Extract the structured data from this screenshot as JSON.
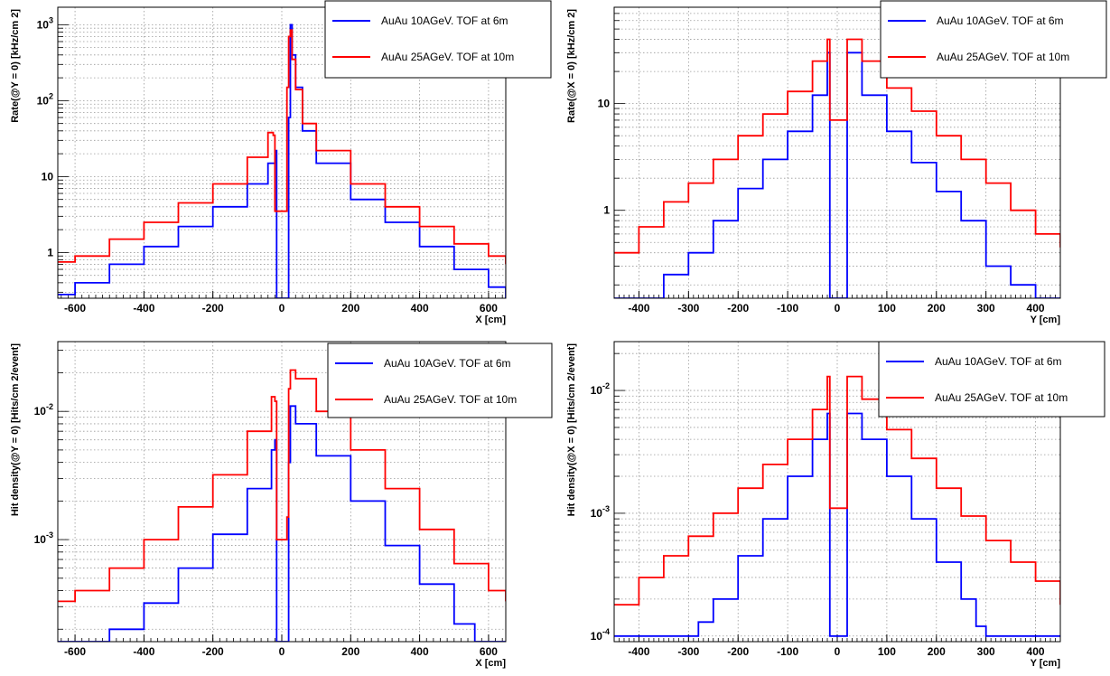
{
  "chart_data": [
    {
      "type": "line",
      "panel": "top-left",
      "xlabel": "X [cm]",
      "ylabel": "Rate(@Y = 0) [kHz/cm  2]",
      "xlim": [
        -650,
        650
      ],
      "ylim": [
        0.25,
        1700
      ],
      "yscale": "log",
      "grid": true,
      "legend_position": "top-right",
      "x_ticks": [
        -600,
        -400,
        -200,
        0,
        200,
        400,
        600
      ],
      "x_tick_labels": [
        "-600",
        "-400",
        "-200",
        "0",
        "200",
        "400",
        "600"
      ],
      "y_ticks": [
        1,
        10,
        100,
        1000
      ],
      "y_tick_labels": [
        "1",
        "10",
        "10^2",
        "10^3"
      ],
      "series": [
        {
          "name": "AuAu 10AGeV. TOF at 6m",
          "color": "#0000ff",
          "x": [
            -650,
            -600,
            -500,
            -400,
            -300,
            -200,
            -100,
            -40,
            -20,
            -15,
            15,
            20,
            25,
            30,
            40,
            60,
            100,
            200,
            300,
            400,
            500,
            600,
            650
          ],
          "y": [
            0.28,
            0.4,
            0.7,
            1.2,
            2.2,
            4.0,
            8.0,
            15,
            22,
            0.25,
            0.25,
            60,
            1000,
            400,
            150,
            40,
            15,
            5.0,
            2.5,
            1.2,
            0.6,
            0.35,
            0.25
          ]
        },
        {
          "name": "AuAu 25AGeV. TOF at 10m",
          "color": "#ff0000",
          "x": [
            -650,
            -600,
            -500,
            -400,
            -300,
            -200,
            -100,
            -40,
            -25,
            -20,
            15,
            20,
            25,
            30,
            40,
            60,
            100,
            200,
            300,
            400,
            500,
            600,
            650
          ],
          "y": [
            0.75,
            0.9,
            1.5,
            2.5,
            4.5,
            8.0,
            18,
            38,
            35,
            3.5,
            150,
            700,
            850,
            350,
            140,
            50,
            22,
            8.0,
            4.0,
            2.2,
            1.3,
            0.9,
            0.7
          ]
        }
      ]
    },
    {
      "type": "line",
      "panel": "top-right",
      "xlabel": "Y [cm]",
      "ylabel": "Rate(@X = 0) [kHz/cm  2]",
      "xlim": [
        -450,
        450
      ],
      "ylim": [
        0.15,
        80
      ],
      "yscale": "log",
      "grid": true,
      "legend_position": "top-right",
      "x_ticks": [
        -400,
        -300,
        -200,
        -100,
        0,
        100,
        200,
        300,
        400
      ],
      "x_tick_labels": [
        "-400",
        "-300",
        "-200",
        "-100",
        "0",
        "100",
        "200",
        "300",
        "400"
      ],
      "y_ticks": [
        1,
        10
      ],
      "y_tick_labels": [
        "1",
        "10"
      ],
      "series": [
        {
          "name": "AuAu 10AGeV. TOF at 6m",
          "color": "#0000ff",
          "x": [
            -450,
            -400,
            -350,
            -300,
            -250,
            -200,
            -150,
            -100,
            -50,
            -20,
            -15,
            15,
            20,
            50,
            100,
            150,
            200,
            250,
            300,
            350,
            400,
            450
          ],
          "y": [
            0.15,
            0.15,
            0.25,
            0.4,
            0.8,
            1.6,
            3.0,
            5.5,
            12,
            30,
            0.15,
            0.15,
            30,
            12,
            5.5,
            2.8,
            1.5,
            0.8,
            0.3,
            0.2,
            0.15,
            0.15
          ]
        },
        {
          "name": "AuAu 25AGeV. TOF at 10m",
          "color": "#ff0000",
          "x": [
            -450,
            -400,
            -350,
            -300,
            -250,
            -200,
            -150,
            -100,
            -50,
            -20,
            -15,
            15,
            20,
            50,
            100,
            150,
            200,
            250,
            300,
            350,
            400,
            450
          ],
          "y": [
            0.4,
            0.7,
            1.2,
            1.8,
            3.0,
            5.0,
            8.0,
            13,
            25,
            40,
            7.0,
            7.0,
            40,
            25,
            14,
            8.5,
            5.0,
            3.0,
            1.8,
            1.0,
            0.6,
            0.45
          ]
        }
      ]
    },
    {
      "type": "line",
      "panel": "bottom-left",
      "xlabel": "X [cm]",
      "ylabel": "Hit density(@Y = 0) [Hits/cm  2/event]",
      "xlim": [
        -650,
        650
      ],
      "ylim": [
        0.00016,
        0.035
      ],
      "yscale": "log",
      "grid": true,
      "legend_position": "top-right",
      "x_ticks": [
        -600,
        -400,
        -200,
        0,
        200,
        400,
        600
      ],
      "x_tick_labels": [
        "-600",
        "-400",
        "-200",
        "0",
        "200",
        "400",
        "600"
      ],
      "y_ticks": [
        0.001,
        0.01
      ],
      "y_tick_labels": [
        "10^-3",
        "10^-2"
      ],
      "series": [
        {
          "name": "AuAu 10AGeV. TOF at 6m",
          "color": "#0000ff",
          "x": [
            -650,
            -580,
            -500,
            -400,
            -300,
            -200,
            -100,
            -30,
            -20,
            -15,
            15,
            20,
            25,
            40,
            100,
            200,
            300,
            400,
            500,
            560,
            650
          ],
          "y": [
            0.00016,
            0.00016,
            0.0002,
            0.00032,
            0.0006,
            0.0011,
            0.0025,
            0.005,
            0.006,
            0.00016,
            0.00016,
            0.004,
            0.011,
            0.008,
            0.0045,
            0.002,
            0.0009,
            0.00045,
            0.00022,
            0.00016,
            0.00016
          ]
        },
        {
          "name": "AuAu 25AGeV. TOF at 10m",
          "color": "#ff0000",
          "x": [
            -650,
            -600,
            -500,
            -400,
            -300,
            -200,
            -100,
            -30,
            -20,
            -15,
            15,
            20,
            25,
            40,
            100,
            200,
            300,
            400,
            500,
            600,
            650
          ],
          "y": [
            0.00033,
            0.0004,
            0.0006,
            0.001,
            0.0018,
            0.0032,
            0.007,
            0.013,
            0.012,
            0.001,
            0.0015,
            0.015,
            0.021,
            0.018,
            0.01,
            0.005,
            0.0025,
            0.0012,
            0.00065,
            0.0004,
            0.00033
          ]
        }
      ]
    },
    {
      "type": "line",
      "panel": "bottom-right",
      "xlabel": "Y [cm]",
      "ylabel": "Hit density(@X = 0) [Hits/cm  2/event]",
      "xlim": [
        -450,
        450
      ],
      "ylim": [
        9e-05,
        0.025
      ],
      "yscale": "log",
      "grid": true,
      "legend_position": "top-right",
      "x_ticks": [
        -400,
        -300,
        -200,
        -100,
        0,
        100,
        200,
        300,
        400
      ],
      "x_tick_labels": [
        "-400",
        "-300",
        "-200",
        "-100",
        "0",
        "100",
        "200",
        "300",
        "400"
      ],
      "y_ticks": [
        0.0001,
        0.001,
        0.01
      ],
      "y_tick_labels": [
        "10^-4",
        "10^-3",
        "10^-2"
      ],
      "series": [
        {
          "name": "AuAu 10AGeV. TOF at 6m",
          "color": "#0000ff",
          "x": [
            -450,
            -300,
            -280,
            -250,
            -200,
            -150,
            -100,
            -50,
            -20,
            -15,
            15,
            20,
            50,
            100,
            150,
            200,
            250,
            280,
            300,
            450
          ],
          "y": [
            0.0001,
            0.0001,
            0.00013,
            0.0002,
            0.00045,
            0.0009,
            0.002,
            0.004,
            0.0065,
            0.0001,
            0.0001,
            0.0065,
            0.004,
            0.002,
            0.0009,
            0.0004,
            0.0002,
            0.00012,
            0.0001,
            0.0001
          ]
        },
        {
          "name": "AuAu 25AGeV. TOF at 10m",
          "color": "#ff0000",
          "x": [
            -450,
            -400,
            -350,
            -300,
            -250,
            -200,
            -150,
            -100,
            -50,
            -20,
            -15,
            15,
            20,
            50,
            100,
            150,
            200,
            250,
            300,
            350,
            400,
            450
          ],
          "y": [
            0.00018,
            0.0003,
            0.00045,
            0.00065,
            0.001,
            0.0016,
            0.0025,
            0.004,
            0.007,
            0.013,
            0.0011,
            0.0011,
            0.013,
            0.0085,
            0.0048,
            0.0028,
            0.0016,
            0.00095,
            0.0006,
            0.0004,
            0.00028,
            0.00018
          ]
        }
      ]
    }
  ]
}
